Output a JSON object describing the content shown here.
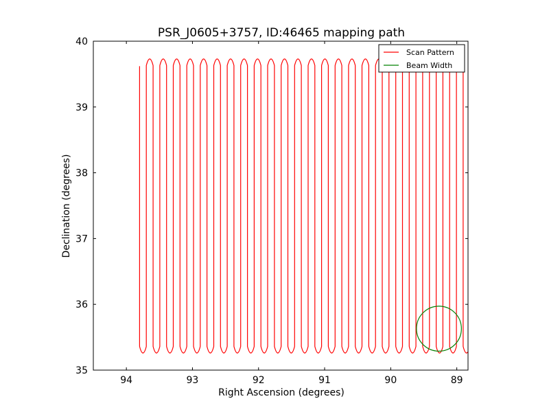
{
  "chart_data": {
    "type": "line",
    "title": "PSR_J0605+3757, ID:46465 mapping path",
    "xlabel": "Right Ascension (degrees)",
    "ylabel": "Declination (degrees)",
    "xlim": [
      94.5,
      88.83
    ],
    "ylim": [
      35,
      40
    ],
    "x_ticks": [
      94,
      93,
      92,
      91,
      90,
      89
    ],
    "y_ticks": [
      35,
      36,
      37,
      38,
      39,
      40
    ],
    "grid": false,
    "legend_position": "top-right",
    "series": [
      {
        "name": "Scan Pattern",
        "color": "#ff0000",
        "pattern": "raster",
        "ra_start": 93.8,
        "ra_end": 88.83,
        "scan_step_ra": 0.102,
        "dec_min": 35.24,
        "dec_max": 39.75,
        "first_dec": 39.62
      },
      {
        "name": "Beam Width",
        "color": "#008000",
        "shape": "circle",
        "center_ra": 89.27,
        "center_dec": 35.63,
        "radius_deg": 0.34
      }
    ]
  }
}
